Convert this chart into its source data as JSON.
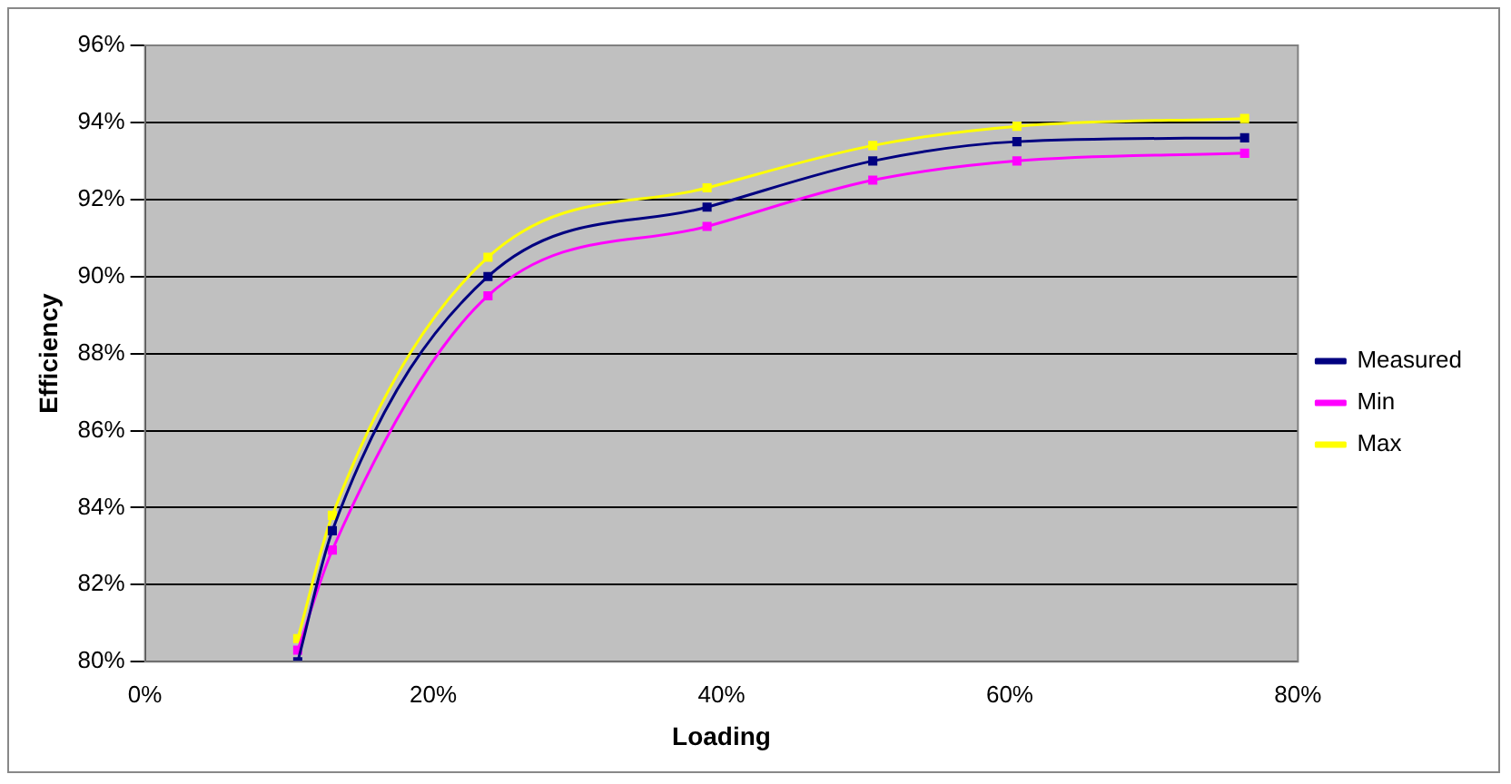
{
  "chart_data": {
    "type": "line",
    "xlabel": "Loading",
    "ylabel": "Efficiency",
    "xlim": [
      0,
      80
    ],
    "xticks": [
      {
        "value": 0,
        "label": "0%"
      },
      {
        "value": 20,
        "label": "20%"
      },
      {
        "value": 40,
        "label": "40%"
      },
      {
        "value": 60,
        "label": "60%"
      },
      {
        "value": 80,
        "label": "80%"
      }
    ],
    "ylim": [
      80,
      96
    ],
    "yticks": [
      {
        "value": 80,
        "label": "80%"
      },
      {
        "value": 82,
        "label": "82%"
      },
      {
        "value": 84,
        "label": "84%"
      },
      {
        "value": 86,
        "label": "86%"
      },
      {
        "value": 88,
        "label": "88%"
      },
      {
        "value": 90,
        "label": "90%"
      },
      {
        "value": 92,
        "label": "92%"
      },
      {
        "value": 94,
        "label": "94%"
      },
      {
        "value": 96,
        "label": "96%"
      }
    ],
    "x": [
      10.6,
      13,
      23.8,
      39,
      50.5,
      60.5,
      76.3
    ],
    "series": [
      {
        "name": "Measured",
        "color": "#000080",
        "values": [
          80.0,
          83.4,
          90.0,
          91.8,
          93.0,
          93.5,
          93.6
        ]
      },
      {
        "name": "Min",
        "color": "#ff00ff",
        "values": [
          80.3,
          82.9,
          89.5,
          91.3,
          92.5,
          93.0,
          93.2
        ]
      },
      {
        "name": "Max",
        "color": "#ffff00",
        "values": [
          80.6,
          83.8,
          90.5,
          92.3,
          93.4,
          93.9,
          94.1
        ]
      }
    ],
    "grid": "y",
    "legend": "right",
    "marker": "square"
  }
}
